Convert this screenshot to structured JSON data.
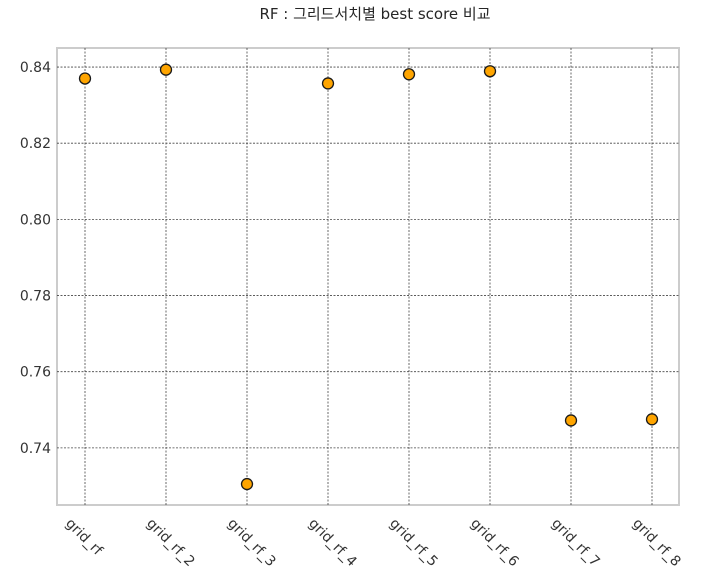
{
  "chart_data": {
    "type": "scatter",
    "title": "RF : 그리드서치별 best score 비교",
    "xlabel": "",
    "ylabel": "",
    "categories": [
      "grid_rf",
      "grid_rf_2",
      "grid_rf_3",
      "grid_rf_4",
      "grid_rf_5",
      "grid_rf_6",
      "grid_rf_7",
      "grid_rf_8"
    ],
    "values": [
      0.837,
      0.8393,
      0.7305,
      0.8357,
      0.8381,
      0.8389,
      0.7472,
      0.7475
    ],
    "ylim": [
      0.725,
      0.845
    ],
    "yticks": [
      "0.74",
      "0.76",
      "0.78",
      "0.80",
      "0.82",
      "0.84"
    ],
    "ytick_values": [
      0.74,
      0.76,
      0.78,
      0.8,
      0.82,
      0.84
    ],
    "grid": true,
    "marker_color": "#FFA500",
    "marker_edge_color": "#1a1a1a",
    "grid_color": "#444444",
    "frame_color": "#cccccc"
  }
}
